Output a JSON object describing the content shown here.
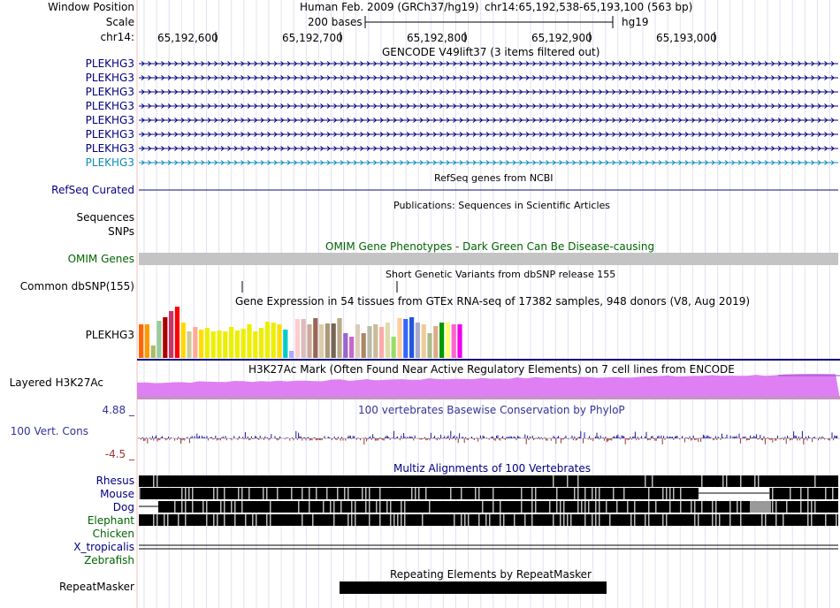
{
  "header": {
    "window_label": "Window Position",
    "scale_label": "Scale",
    "chrom_label": "chr14:",
    "assembly": "Human Feb. 2009 (GRCh37/hg19)",
    "position": "chr14:65,192,538-65,193,100 (563 bp)",
    "scale_text": "200 bases",
    "db": "hg19",
    "ruler_ticks": [
      "65,192,600",
      "65,192,700",
      "65,192,800",
      "65,192,900",
      "65,193,000"
    ]
  },
  "tracks": {
    "gencode": {
      "title": "GENCODE V49lift37 (3 items filtered out)",
      "items": [
        "PLEKHG3",
        "PLEKHG3",
        "PLEKHG3",
        "PLEKHG3",
        "PLEKHG3",
        "PLEKHG3",
        "PLEKHG3",
        "PLEKHG3"
      ]
    },
    "refseq": {
      "label": "RefSeq Curated",
      "title": "RefSeq genes from NCBI"
    },
    "publications": {
      "title": "Publications: Sequences in Scientific Articles",
      "labels": [
        "Sequences",
        "SNPs"
      ]
    },
    "omim": {
      "title": "OMIM Gene Phenotypes - Dark Green Can Be Disease-causing",
      "label": "OMIM Genes"
    },
    "dbsnp": {
      "title": "Short Genetic Variants from dbSNP release 155",
      "label": "Common dbSNP(155)"
    },
    "gtex": {
      "title": "Gene Expression in 54 tissues from GTEx RNA-seq of 17382 samples, 948 donors (V8, Aug 2019)",
      "label": "PLEKHG3"
    },
    "h3k27ac": {
      "title": "H3K27Ac Mark (Often Found Near Active Regulatory Elements) on 7 cell lines from ENCODE",
      "label": "Layered H3K27Ac"
    },
    "cons": {
      "title": "100 vertebrates Basewise Conservation by PhyloP",
      "label": "100 Vert. Cons",
      "max": "4.88 _",
      "min": "-4.5 _"
    },
    "multiz": {
      "title": "Multiz Alignments of 100 Vertebrates",
      "species": [
        "Rhesus",
        "Mouse",
        "Dog",
        "Elephant",
        "Chicken",
        "X_tropicalis",
        "Zebrafish"
      ]
    },
    "rmsk": {
      "title": "Repeating Elements by RepeatMasker",
      "label": "RepeatMasker"
    }
  },
  "colors": {
    "label_blue": "#000080",
    "gencode_last": "#0C8AB8",
    "omim_green": "#006400",
    "cons_blue": "#333399",
    "guide_line": "#E2E2F2",
    "h3k27ac": "#DE80F4"
  }
}
